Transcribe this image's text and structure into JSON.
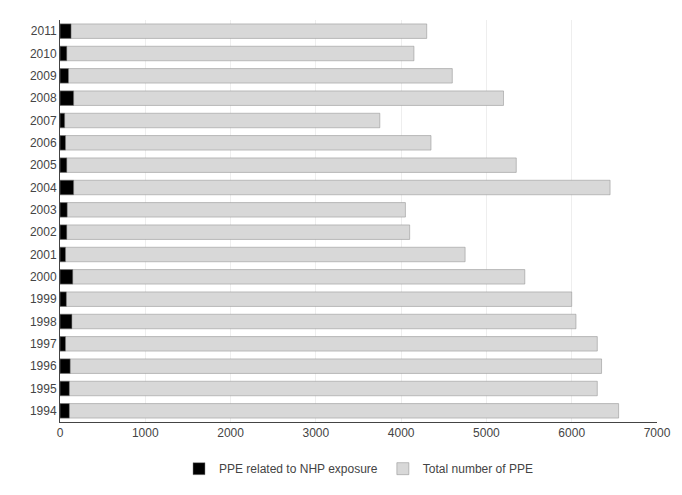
{
  "chart_data": {
    "type": "bar",
    "orientation": "horizontal",
    "categories": [
      "2011",
      "2010",
      "2009",
      "2008",
      "2007",
      "2006",
      "2005",
      "2004",
      "2003",
      "2002",
      "2001",
      "2000",
      "1999",
      "1998",
      "1997",
      "1996",
      "1995",
      "1994"
    ],
    "series": [
      {
        "name": "Total number of PPE",
        "color": "#d8d8d8",
        "values": [
          4300,
          4150,
          4600,
          5200,
          3750,
          4350,
          5350,
          6450,
          4050,
          4100,
          4750,
          5450,
          6000,
          6050,
          6300,
          6350,
          6300,
          6550
        ]
      },
      {
        "name": "PPE related to NHP exposure",
        "color": "#000000",
        "values": [
          130,
          80,
          100,
          160,
          55,
          65,
          80,
          160,
          85,
          80,
          65,
          150,
          75,
          140,
          65,
          120,
          110,
          110
        ]
      }
    ],
    "xlim": [
      0,
      7000
    ],
    "xticks": [
      0,
      1000,
      2000,
      3000,
      4000,
      5000,
      6000,
      7000
    ],
    "grid": true,
    "legend": "bottom"
  }
}
